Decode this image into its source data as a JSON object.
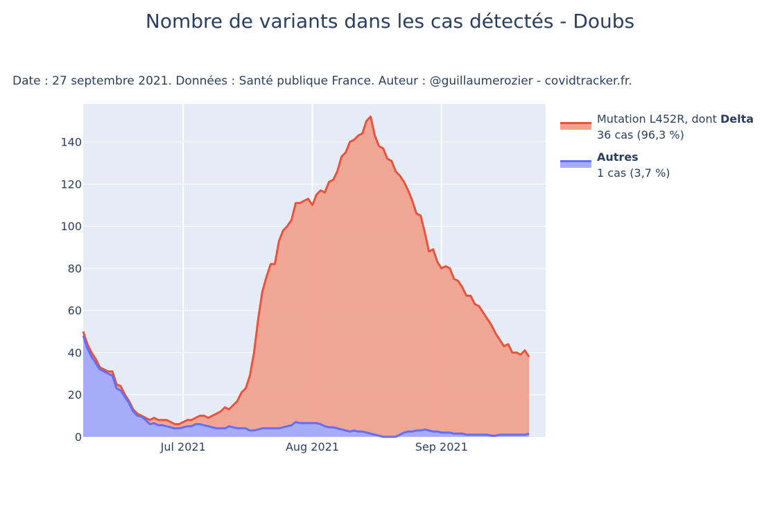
{
  "title": "Nombre de variants dans les cas détectés - Doubs",
  "subtitle": "Date : 27 septembre 2021. Données : Santé publique France. Auteur : @guillaumerozier - covidtracker.fr.",
  "legend": [
    {
      "name_prefix": "Mutation L452R, dont ",
      "name_bold": "Delta",
      "detail": "36 cas (96,3 %)",
      "line_color": "#e9533c",
      "fill_color": "#f0a28e"
    },
    {
      "name_prefix": "",
      "name_bold": "Autres",
      "detail": "1 cas (3,7 %)",
      "line_color": "#636efa",
      "fill_color": "#a6acf7"
    }
  ],
  "chart_data": {
    "type": "area",
    "stacked": true,
    "xaxis": {
      "start": "2021-06-07",
      "end": "2021-09-26",
      "ticks": [
        "Jul 2021",
        "Aug 2021",
        "Sep 2021"
      ]
    },
    "yaxis": {
      "range": [
        0,
        158
      ],
      "ticks": [
        0,
        20,
        40,
        60,
        80,
        100,
        120,
        140
      ]
    },
    "grid": true,
    "legend_position": "right",
    "series": [
      {
        "name": "Mutation L452R, dont Delta",
        "color": "#e9533c",
        "fill": "#f0a28e",
        "points": [
          [
            "2021-06-07",
            50
          ],
          [
            "2021-06-08",
            44
          ],
          [
            "2021-06-09",
            40
          ],
          [
            "2021-06-10",
            37
          ],
          [
            "2021-06-11",
            33
          ],
          [
            "2021-06-12",
            32
          ],
          [
            "2021-06-13",
            31
          ],
          [
            "2021-06-14",
            31
          ],
          [
            "2021-06-15",
            25
          ],
          [
            "2021-06-16",
            24
          ],
          [
            "2021-06-17",
            20
          ],
          [
            "2021-06-18",
            17
          ],
          [
            "2021-06-19",
            13
          ],
          [
            "2021-06-20",
            11
          ],
          [
            "2021-06-21",
            10
          ],
          [
            "2021-06-22",
            9
          ],
          [
            "2021-06-23",
            8
          ],
          [
            "2021-06-24",
            9
          ],
          [
            "2021-06-25",
            8
          ],
          [
            "2021-06-26",
            8
          ],
          [
            "2021-06-27",
            8
          ],
          [
            "2021-06-28",
            7
          ],
          [
            "2021-06-29",
            6
          ],
          [
            "2021-06-30",
            6
          ],
          [
            "2021-07-01",
            7
          ],
          [
            "2021-07-02",
            8
          ],
          [
            "2021-07-03",
            8
          ],
          [
            "2021-07-04",
            9
          ],
          [
            "2021-07-05",
            10
          ],
          [
            "2021-07-06",
            10
          ],
          [
            "2021-07-07",
            9
          ],
          [
            "2021-07-08",
            10
          ],
          [
            "2021-07-09",
            11
          ],
          [
            "2021-07-10",
            12
          ],
          [
            "2021-07-11",
            14
          ],
          [
            "2021-07-12",
            13
          ],
          [
            "2021-07-13",
            15
          ],
          [
            "2021-07-14",
            17
          ],
          [
            "2021-07-15",
            21
          ],
          [
            "2021-07-16",
            23
          ],
          [
            "2021-07-17",
            29
          ],
          [
            "2021-07-18",
            40
          ],
          [
            "2021-07-19",
            56
          ],
          [
            "2021-07-20",
            69
          ],
          [
            "2021-07-21",
            76
          ],
          [
            "2021-07-22",
            82
          ],
          [
            "2021-07-23",
            82
          ],
          [
            "2021-07-24",
            93
          ],
          [
            "2021-07-25",
            98
          ],
          [
            "2021-07-26",
            100
          ],
          [
            "2021-07-27",
            103
          ],
          [
            "2021-07-28",
            111
          ],
          [
            "2021-07-29",
            111
          ],
          [
            "2021-07-30",
            112
          ],
          [
            "2021-07-31",
            113
          ],
          [
            "2021-08-01",
            110
          ],
          [
            "2021-08-02",
            115
          ],
          [
            "2021-08-03",
            117
          ],
          [
            "2021-08-04",
            116
          ],
          [
            "2021-08-05",
            121
          ],
          [
            "2021-08-06",
            122
          ],
          [
            "2021-08-07",
            126
          ],
          [
            "2021-08-08",
            133
          ],
          [
            "2021-08-09",
            135
          ],
          [
            "2021-08-10",
            140
          ],
          [
            "2021-08-11",
            141
          ],
          [
            "2021-08-12",
            143
          ],
          [
            "2021-08-13",
            144
          ],
          [
            "2021-08-14",
            150
          ],
          [
            "2021-08-15",
            152
          ],
          [
            "2021-08-16",
            143
          ],
          [
            "2021-08-17",
            138
          ],
          [
            "2021-08-18",
            137
          ],
          [
            "2021-08-19",
            132
          ],
          [
            "2021-08-20",
            131
          ],
          [
            "2021-08-21",
            126
          ],
          [
            "2021-08-22",
            124
          ],
          [
            "2021-08-23",
            121
          ],
          [
            "2021-08-24",
            117
          ],
          [
            "2021-08-25",
            112
          ],
          [
            "2021-08-26",
            106
          ],
          [
            "2021-08-27",
            105
          ],
          [
            "2021-08-28",
            97
          ],
          [
            "2021-08-29",
            88
          ],
          [
            "2021-08-30",
            89
          ],
          [
            "2021-08-31",
            83
          ],
          [
            "2021-09-01",
            80
          ],
          [
            "2021-09-02",
            81
          ],
          [
            "2021-09-03",
            80
          ],
          [
            "2021-09-04",
            75
          ],
          [
            "2021-09-05",
            74
          ],
          [
            "2021-09-06",
            71
          ],
          [
            "2021-09-07",
            67
          ],
          [
            "2021-09-08",
            67
          ],
          [
            "2021-09-09",
            63
          ],
          [
            "2021-09-10",
            62
          ],
          [
            "2021-09-11",
            59
          ],
          [
            "2021-09-12",
            56
          ],
          [
            "2021-09-13",
            53
          ],
          [
            "2021-09-14",
            49
          ],
          [
            "2021-09-15",
            46
          ],
          [
            "2021-09-16",
            43
          ],
          [
            "2021-09-17",
            44
          ],
          [
            "2021-09-18",
            40
          ],
          [
            "2021-09-19",
            40
          ],
          [
            "2021-09-20",
            39
          ],
          [
            "2021-09-21",
            41
          ],
          [
            "2021-09-22",
            38
          ]
        ]
      },
      {
        "name": "Autres",
        "color": "#636efa",
        "fill": "#a6acf7",
        "points": [
          [
            "2021-06-07",
            48
          ],
          [
            "2021-06-08",
            42
          ],
          [
            "2021-06-09",
            38
          ],
          [
            "2021-06-10",
            35
          ],
          [
            "2021-06-11",
            32
          ],
          [
            "2021-06-12",
            31
          ],
          [
            "2021-06-13",
            30
          ],
          [
            "2021-06-14",
            29
          ],
          [
            "2021-06-15",
            23
          ],
          [
            "2021-06-16",
            22
          ],
          [
            "2021-06-17",
            19
          ],
          [
            "2021-06-18",
            16
          ],
          [
            "2021-06-19",
            12
          ],
          [
            "2021-06-20",
            10
          ],
          [
            "2021-06-21",
            9.5
          ],
          [
            "2021-06-22",
            8
          ],
          [
            "2021-06-23",
            6
          ],
          [
            "2021-06-24",
            6.5
          ],
          [
            "2021-06-25",
            5.5
          ],
          [
            "2021-06-26",
            5.5
          ],
          [
            "2021-06-27",
            5
          ],
          [
            "2021-06-28",
            4.5
          ],
          [
            "2021-06-29",
            4
          ],
          [
            "2021-06-30",
            4
          ],
          [
            "2021-07-01",
            4.5
          ],
          [
            "2021-07-02",
            5
          ],
          [
            "2021-07-03",
            5
          ],
          [
            "2021-07-04",
            6
          ],
          [
            "2021-07-05",
            6
          ],
          [
            "2021-07-06",
            5.5
          ],
          [
            "2021-07-07",
            5
          ],
          [
            "2021-07-08",
            4.5
          ],
          [
            "2021-07-09",
            4
          ],
          [
            "2021-07-10",
            4
          ],
          [
            "2021-07-11",
            4
          ],
          [
            "2021-07-12",
            5
          ],
          [
            "2021-07-13",
            4.5
          ],
          [
            "2021-07-14",
            4
          ],
          [
            "2021-07-15",
            4
          ],
          [
            "2021-07-16",
            4
          ],
          [
            "2021-07-17",
            3
          ],
          [
            "2021-07-18",
            3
          ],
          [
            "2021-07-19",
            3.5
          ],
          [
            "2021-07-20",
            4
          ],
          [
            "2021-07-21",
            4
          ],
          [
            "2021-07-22",
            4
          ],
          [
            "2021-07-23",
            4
          ],
          [
            "2021-07-24",
            4
          ],
          [
            "2021-07-25",
            4.5
          ],
          [
            "2021-07-26",
            5
          ],
          [
            "2021-07-27",
            5.5
          ],
          [
            "2021-07-28",
            7
          ],
          [
            "2021-07-29",
            6.5
          ],
          [
            "2021-07-30",
            6.5
          ],
          [
            "2021-07-31",
            6.5
          ],
          [
            "2021-08-01",
            6.5
          ],
          [
            "2021-08-02",
            6.5
          ],
          [
            "2021-08-03",
            6
          ],
          [
            "2021-08-04",
            5
          ],
          [
            "2021-08-05",
            4.5
          ],
          [
            "2021-08-06",
            4.5
          ],
          [
            "2021-08-07",
            4
          ],
          [
            "2021-08-08",
            3.5
          ],
          [
            "2021-08-09",
            3
          ],
          [
            "2021-08-10",
            2.5
          ],
          [
            "2021-08-11",
            3
          ],
          [
            "2021-08-12",
            2.5
          ],
          [
            "2021-08-13",
            2.5
          ],
          [
            "2021-08-14",
            2
          ],
          [
            "2021-08-15",
            1.5
          ],
          [
            "2021-08-16",
            1
          ],
          [
            "2021-08-17",
            0.5
          ],
          [
            "2021-08-18",
            0
          ],
          [
            "2021-08-19",
            0
          ],
          [
            "2021-08-20",
            0
          ],
          [
            "2021-08-21",
            0
          ],
          [
            "2021-08-22",
            1
          ],
          [
            "2021-08-23",
            2
          ],
          [
            "2021-08-24",
            2.5
          ],
          [
            "2021-08-25",
            2.5
          ],
          [
            "2021-08-26",
            3
          ],
          [
            "2021-08-27",
            3
          ],
          [
            "2021-08-28",
            3.5
          ],
          [
            "2021-08-29",
            3
          ],
          [
            "2021-08-30",
            2.5
          ],
          [
            "2021-08-31",
            2.5
          ],
          [
            "2021-09-01",
            2
          ],
          [
            "2021-09-02",
            2
          ],
          [
            "2021-09-03",
            2
          ],
          [
            "2021-09-04",
            1.5
          ],
          [
            "2021-09-05",
            1.5
          ],
          [
            "2021-09-06",
            1.5
          ],
          [
            "2021-09-07",
            1
          ],
          [
            "2021-09-08",
            1
          ],
          [
            "2021-09-09",
            1
          ],
          [
            "2021-09-10",
            1
          ],
          [
            "2021-09-11",
            1
          ],
          [
            "2021-09-12",
            1
          ],
          [
            "2021-09-13",
            0.5
          ],
          [
            "2021-09-14",
            0.5
          ],
          [
            "2021-09-15",
            1
          ],
          [
            "2021-09-16",
            1
          ],
          [
            "2021-09-17",
            1
          ],
          [
            "2021-09-18",
            1
          ],
          [
            "2021-09-19",
            1
          ],
          [
            "2021-09-20",
            1
          ],
          [
            "2021-09-21",
            1
          ],
          [
            "2021-09-22",
            1.5
          ]
        ]
      }
    ]
  }
}
